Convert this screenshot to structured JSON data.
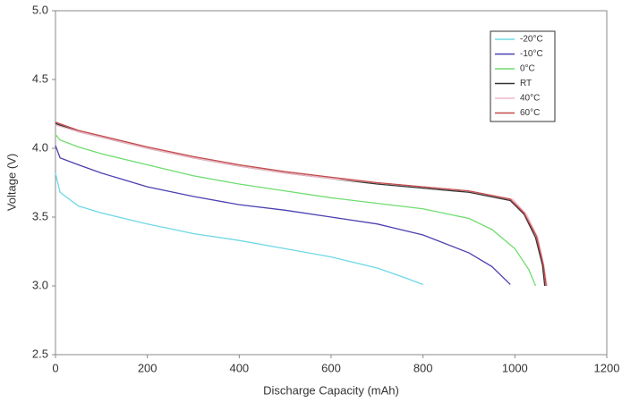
{
  "chart_data": {
    "type": "line",
    "xlabel": "Discharge Capacity (mAh)",
    "ylabel": "Voltage (V)",
    "xlim": [
      0,
      1200
    ],
    "xticks": [
      0,
      200,
      400,
      600,
      800,
      1000,
      1200
    ],
    "ylim": [
      2.5,
      5
    ],
    "yticks": [
      2.5,
      {
        "value": 3,
        "label": "3.0"
      },
      3.5,
      {
        "value": 4,
        "label": "4.0"
      },
      4.5,
      {
        "value": 5,
        "label": "5.0"
      }
    ],
    "grid": false,
    "legend": "upper right",
    "series": [
      {
        "name": "-20°C",
        "color": "#6fd8e6",
        "x": [
          0,
          10,
          50,
          100,
          200,
          300,
          400,
          500,
          600,
          700,
          760,
          800
        ],
        "values": [
          3.82,
          3.68,
          3.58,
          3.53,
          3.45,
          3.38,
          3.33,
          3.27,
          3.21,
          3.13,
          3.06,
          3.01
        ]
      },
      {
        "name": "-10°C",
        "color": "#4a3fb0",
        "x": [
          0,
          10,
          50,
          100,
          200,
          300,
          400,
          500,
          600,
          700,
          800,
          900,
          950,
          990
        ],
        "values": [
          4.02,
          3.93,
          3.88,
          3.82,
          3.72,
          3.65,
          3.59,
          3.55,
          3.5,
          3.45,
          3.37,
          3.24,
          3.14,
          3.01
        ]
      },
      {
        "name": "0°C",
        "color": "#6fdc6f",
        "x": [
          0,
          10,
          50,
          100,
          200,
          300,
          400,
          500,
          600,
          700,
          800,
          900,
          950,
          1000,
          1030,
          1045
        ],
        "values": [
          4.1,
          4.06,
          4.01,
          3.96,
          3.88,
          3.8,
          3.74,
          3.69,
          3.64,
          3.6,
          3.56,
          3.49,
          3.41,
          3.27,
          3.12,
          3.0
        ]
      },
      {
        "name": "RT",
        "color": "#333333",
        "x": [
          0,
          50,
          100,
          200,
          300,
          400,
          500,
          600,
          700,
          800,
          900,
          990,
          1020,
          1045,
          1060,
          1065
        ],
        "values": [
          4.18,
          4.12,
          4.08,
          4.0,
          3.93,
          3.87,
          3.82,
          3.78,
          3.74,
          3.71,
          3.68,
          3.62,
          3.52,
          3.35,
          3.15,
          3.0
        ]
      },
      {
        "name": "40°C",
        "color": "#f0b8c8",
        "x": [
          0,
          50,
          100,
          200,
          300,
          400,
          500,
          600,
          700,
          800,
          900,
          995,
          1025,
          1050,
          1063,
          1070
        ],
        "values": [
          4.17,
          4.12,
          4.08,
          4.0,
          3.93,
          3.87,
          3.82,
          3.78,
          3.75,
          3.72,
          3.69,
          3.63,
          3.52,
          3.35,
          3.15,
          3.0
        ]
      },
      {
        "name": "60°C",
        "color": "#c44a4a",
        "x": [
          0,
          50,
          100,
          200,
          300,
          400,
          500,
          600,
          700,
          800,
          900,
          990,
          1020,
          1047,
          1062,
          1068
        ],
        "values": [
          4.19,
          4.13,
          4.09,
          4.01,
          3.94,
          3.88,
          3.83,
          3.79,
          3.75,
          3.72,
          3.69,
          3.63,
          3.53,
          3.36,
          3.15,
          3.0
        ]
      }
    ]
  }
}
